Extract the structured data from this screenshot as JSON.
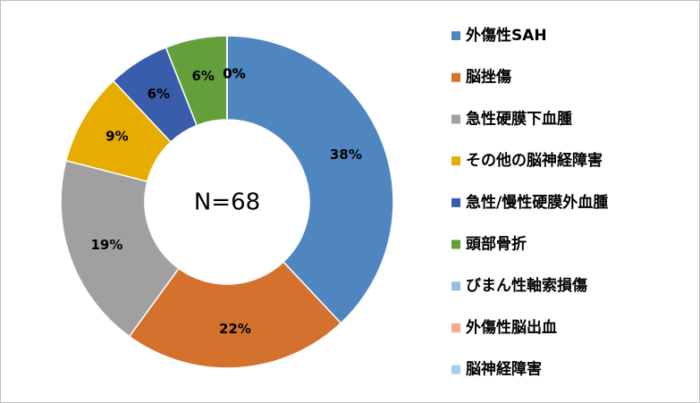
{
  "chart_data": {
    "type": "donut",
    "annotation": "N=68",
    "categories": [
      "外傷性SAH",
      "脳挫傷",
      "急性硬膜下血腫",
      "その他の脳神経障害",
      "急性/慢性硬膜外血腫",
      "頭部骨折",
      "びまん性軸索損傷",
      "外傷性脳出血",
      "脳神経障害"
    ],
    "values": [
      38,
      22,
      19,
      9,
      6,
      6,
      0,
      0,
      0
    ],
    "value_labels": [
      "38%",
      "22%",
      "19%",
      "9%",
      "6%",
      "6%",
      "0%",
      "0%",
      "0%"
    ],
    "colors": [
      "#4f86c0",
      "#d4712d",
      "#a0a0a0",
      "#e6ac00",
      "#3a5dab",
      "#63a03c",
      "#9dbbe0",
      "#f4a98a",
      "#9fd0f2"
    ],
    "legend": "right"
  }
}
